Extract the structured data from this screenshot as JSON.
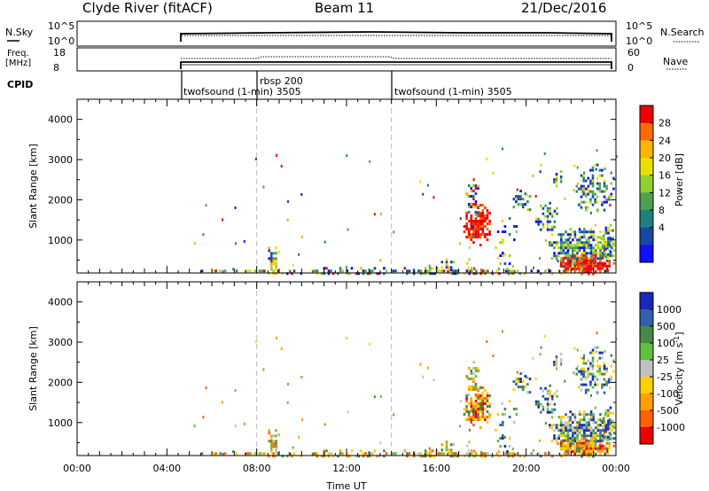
{
  "header": {
    "station": "Clyde River (fitACF)",
    "beam": "Beam 11",
    "date": "21/Dec/2016"
  },
  "status_panels": {
    "nsky_label": "N.Sky",
    "nsearch_label": "N.Search",
    "freq_label_line1": "Freq.",
    "freq_label_line2": "[MHz]",
    "nave_label": "Nave",
    "cpid_label": "CPID",
    "left_ticks_top": [
      "10^5",
      "10^0"
    ],
    "right_ticks_top": [
      "10^5",
      "10^0"
    ],
    "left_ticks_freq": [
      "18",
      "8"
    ],
    "right_ticks_nave": [
      "60",
      "0"
    ],
    "cpid_segments": [
      {
        "label": "twofsound (1-min) 3505",
        "start_hour": 4.75
      },
      {
        "label": "rbsp 200",
        "start_hour": 8.0
      },
      {
        "label": "twofsound (1-min) 3505",
        "start_hour": 14.0
      }
    ]
  },
  "chart_data": [
    {
      "type": "heatmap",
      "name": "power",
      "ylabel": "Slant Range [km]",
      "xlim": [
        0,
        24
      ],
      "ylim": [
        180,
        4500
      ],
      "yticks": [
        1000,
        2000,
        3000,
        4000
      ],
      "colorbar": {
        "label": "Power [dB]",
        "ticks": [
          "28",
          "24",
          "20",
          "16",
          "12",
          "8",
          "4"
        ],
        "colors": [
          "#ee0000",
          "#ff6a00",
          "#ffb400",
          "#e8e000",
          "#90d030",
          "#50a050",
          "#208080",
          "#1848a0",
          "#1010ff"
        ]
      },
      "vertical_markers_hours": [
        8.0,
        14.0
      ]
    },
    {
      "type": "heatmap",
      "name": "velocity",
      "ylabel": "Slant Range [km]",
      "xlabel": "Time UT",
      "xlim": [
        0,
        24
      ],
      "ylim": [
        180,
        4500
      ],
      "yticks": [
        1000,
        2000,
        3000,
        4000
      ],
      "xticks": [
        "00:00",
        "04:00",
        "08:00",
        "12:00",
        "16:00",
        "20:00",
        "00:00"
      ],
      "colorbar": {
        "label": "Velocity [m s^-1]",
        "ticks": [
          "1000",
          "500",
          "100",
          "25",
          "-25",
          "-100",
          "-500",
          "-1000"
        ],
        "colors": [
          "#1828b8",
          "#3060a8",
          "#488848",
          "#60c040",
          "#c0c0c0",
          "#ffd000",
          "#ffa000",
          "#ff6000",
          "#ee0000"
        ]
      },
      "vertical_markers_hours": [
        8.0,
        14.0
      ]
    }
  ],
  "echo_clusters": [
    {
      "t0": 4.9,
      "t1": 24.0,
      "r0": 180,
      "r1": 330,
      "density": 0.5,
      "pal": "mix"
    },
    {
      "t0": 8.4,
      "t1": 8.9,
      "r0": 250,
      "r1": 900,
      "density": 0.55,
      "pal": "mix"
    },
    {
      "t0": 16.1,
      "t1": 16.8,
      "r0": 250,
      "r1": 550,
      "density": 0.5,
      "pal": "mix"
    },
    {
      "t0": 17.2,
      "t1": 18.4,
      "r0": 900,
      "r1": 1900,
      "density": 0.8,
      "pal": "hot"
    },
    {
      "t0": 17.3,
      "t1": 17.9,
      "r0": 1600,
      "r1": 2450,
      "density": 0.5,
      "pal": "mix"
    },
    {
      "t0": 18.6,
      "t1": 19.6,
      "r0": 250,
      "r1": 1700,
      "density": 0.2,
      "pal": "cool"
    },
    {
      "t0": 19.3,
      "t1": 20.3,
      "r0": 1750,
      "r1": 2250,
      "density": 0.45,
      "pal": "cool"
    },
    {
      "t0": 20.4,
      "t1": 21.4,
      "r0": 1200,
      "r1": 1950,
      "density": 0.4,
      "pal": "cool"
    },
    {
      "t0": 21.0,
      "t1": 23.9,
      "r0": 300,
      "r1": 1300,
      "density": 0.8,
      "pal": "cool"
    },
    {
      "t0": 21.3,
      "t1": 23.9,
      "r0": 180,
      "r1": 650,
      "density": 0.85,
      "pal": "hot"
    },
    {
      "t0": 22.1,
      "t1": 23.9,
      "r0": 1750,
      "r1": 2900,
      "density": 0.4,
      "pal": "cool"
    },
    {
      "t0": 21.2,
      "t1": 21.6,
      "r0": 2300,
      "r1": 2800,
      "density": 0.35,
      "pal": "cool"
    },
    {
      "t0": 23.3,
      "t1": 23.9,
      "r0": 600,
      "r1": 1400,
      "density": 0.6,
      "pal": "cool"
    }
  ]
}
